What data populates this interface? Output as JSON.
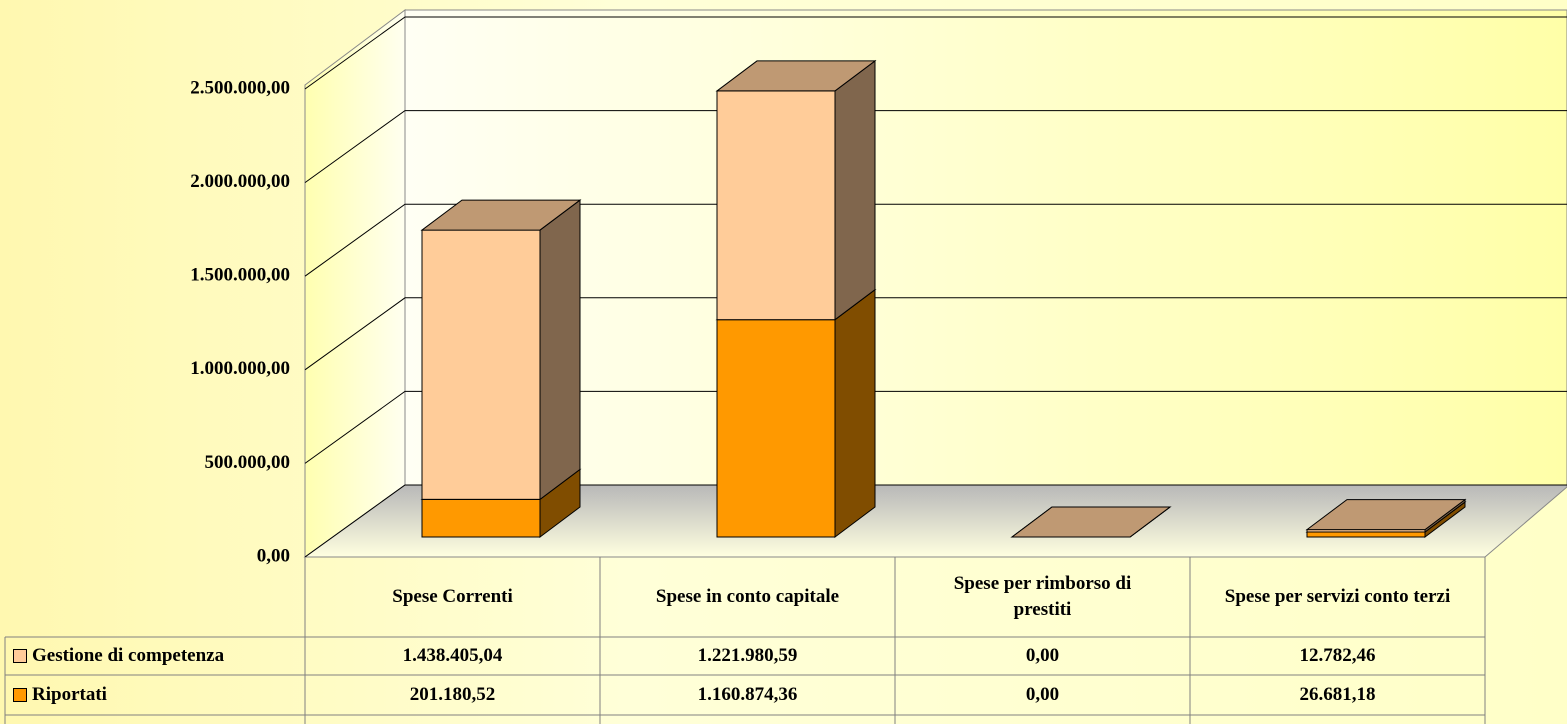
{
  "chart_data": {
    "type": "bar3d_stacked",
    "categories": [
      "Spese Correnti",
      "Spese in conto capitale",
      "Spese per rimborso di prestiti",
      "Spese per servizi conto terzi"
    ],
    "series": [
      {
        "name": "Gestione di competenza",
        "color": "#FFCC99",
        "values": [
          1438405.04,
          1221980.59,
          0,
          12782.46
        ],
        "value_labels": [
          "1.438.405,04",
          "1.221.980,59",
          "0,00",
          "12.782,46"
        ]
      },
      {
        "name": "Riportati",
        "color": "#FF9900",
        "values": [
          201180.52,
          1160874.36,
          0,
          26681.18
        ],
        "value_labels": [
          "201.180,52",
          "1.160.874,36",
          "0,00",
          "26.681,18"
        ]
      }
    ],
    "ylim": [
      0,
      2500000
    ],
    "yticks": [
      {
        "value": 0,
        "label": "0,00"
      },
      {
        "value": 500000,
        "label": "500.000,00"
      },
      {
        "value": 1000000,
        "label": "1.000.000,00"
      },
      {
        "value": 1500000,
        "label": "1.500.000,00"
      },
      {
        "value": 2000000,
        "label": "2.000.000,00"
      },
      {
        "value": 2500000,
        "label": "2.500.000,00"
      }
    ],
    "grid": true
  }
}
